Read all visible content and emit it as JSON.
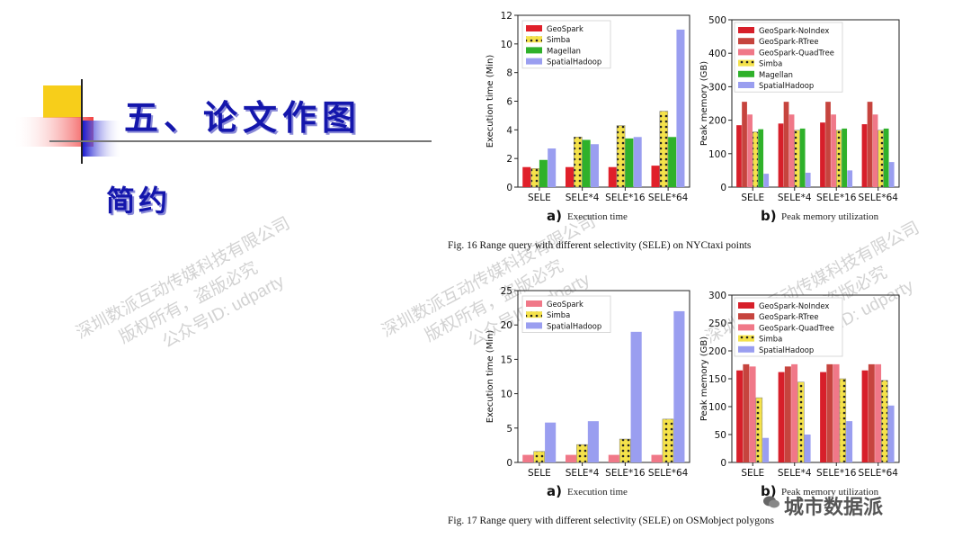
{
  "slide": {
    "title": "五、论文作图",
    "subtitle": "简约",
    "watermark_lines": [
      "深圳数派互动传媒科技有限公司",
      "版权所有，盗版必究",
      "公众号ID: udparty"
    ],
    "logo_text": "城市数据派"
  },
  "figures": [
    {
      "caption": "Fig. 16  Range query with different selectivity (SELE) on NYCtaxi points"
    },
    {
      "caption": "Fig. 17  Range query with different selectivity (SELE) on OSMobject polygons"
    }
  ],
  "colors": {
    "GeoSpark": "#e0202a",
    "Simba": "#f5e24a",
    "Magellan": "#2fb12a",
    "SpatialHadoop": "#9a9ef0",
    "GeoSpark-NoIndex": "#d71f2a",
    "GeoSpark-RTree": "#c6443e",
    "GeoSpark-QuadTree": "#f07888",
    "title_blue": "#1416ac"
  },
  "chart_data": [
    {
      "type": "bar",
      "panel_letter": "a)",
      "panel_label": "Execution time",
      "categories": [
        "SELE",
        "SELE*4",
        "SELE*16",
        "SELE*64"
      ],
      "ylabel": "Execution time (Min)",
      "ylim": [
        0,
        12
      ],
      "yticks": [
        0,
        2,
        4,
        6,
        8,
        10,
        12
      ],
      "legend_position": "top-left",
      "series": [
        {
          "name": "GeoSpark",
          "values": [
            1.4,
            1.4,
            1.4,
            1.5
          ],
          "color": "#e0202a",
          "pattern": "none"
        },
        {
          "name": "Simba",
          "values": [
            1.3,
            3.5,
            4.3,
            5.3
          ],
          "color": "#f5e24a",
          "pattern": "dots"
        },
        {
          "name": "Magellan",
          "values": [
            1.9,
            3.3,
            3.4,
            3.5
          ],
          "color": "#2fb12a",
          "pattern": "none"
        },
        {
          "name": "SpatialHadoop",
          "values": [
            2.7,
            3.0,
            3.5,
            11.0
          ],
          "color": "#9a9ef0",
          "pattern": "none"
        }
      ]
    },
    {
      "type": "bar",
      "panel_letter": "b)",
      "panel_label": "Peak memory utilization",
      "categories": [
        "SELE",
        "SELE*4",
        "SELE*16",
        "SELE*64"
      ],
      "ylabel": "Peak memory (GB)",
      "ylim": [
        0,
        500
      ],
      "yticks": [
        0,
        100,
        200,
        300,
        400,
        500
      ],
      "legend_position": "top-left",
      "series": [
        {
          "name": "GeoSpark-NoIndex",
          "values": [
            185,
            190,
            193,
            188
          ],
          "color": "#d71f2a",
          "pattern": "none"
        },
        {
          "name": "GeoSpark-RTree",
          "values": [
            255,
            255,
            255,
            255
          ],
          "color": "#c6443e",
          "pattern": "none"
        },
        {
          "name": "GeoSpark-QuadTree",
          "values": [
            217,
            217,
            217,
            217
          ],
          "color": "#f07888",
          "pattern": "none"
        },
        {
          "name": "Simba",
          "values": [
            165,
            170,
            170,
            170
          ],
          "color": "#f5e24a",
          "pattern": "dots"
        },
        {
          "name": "Magellan",
          "values": [
            173,
            175,
            175,
            175
          ],
          "color": "#2fb12a",
          "pattern": "none"
        },
        {
          "name": "SpatialHadoop",
          "values": [
            40,
            43,
            50,
            75
          ],
          "color": "#9a9ef0",
          "pattern": "none"
        }
      ]
    },
    {
      "type": "bar",
      "panel_letter": "a)",
      "panel_label": "Execution time",
      "categories": [
        "SELE",
        "SELE*4",
        "SELE*16",
        "SELE*64"
      ],
      "ylabel": "Execution time (Min)",
      "ylim": [
        0,
        25
      ],
      "yticks": [
        0,
        5,
        10,
        15,
        20,
        25
      ],
      "legend_position": "top-left",
      "series": [
        {
          "name": "GeoSpark",
          "values": [
            1.1,
            1.1,
            1.1,
            1.1
          ],
          "color": "#f07888",
          "pattern": "none"
        },
        {
          "name": "Simba",
          "values": [
            1.6,
            2.6,
            3.4,
            6.3
          ],
          "color": "#f5e24a",
          "pattern": "dots"
        },
        {
          "name": "SpatialHadoop",
          "values": [
            5.8,
            6.0,
            19.0,
            22.0
          ],
          "color": "#9a9ef0",
          "pattern": "none"
        }
      ]
    },
    {
      "type": "bar",
      "panel_letter": "b)",
      "panel_label": "Peak memory utilization",
      "categories": [
        "SELE",
        "SELE*4",
        "SELE*16",
        "SELE*64"
      ],
      "ylabel": "Peak memory (GB)",
      "ylim": [
        0,
        300
      ],
      "yticks": [
        0,
        50,
        100,
        150,
        200,
        250,
        300
      ],
      "legend_position": "top-left",
      "series": [
        {
          "name": "GeoSpark-NoIndex",
          "values": [
            165,
            162,
            162,
            165
          ],
          "color": "#d71f2a",
          "pattern": "none"
        },
        {
          "name": "GeoSpark-RTree",
          "values": [
            176,
            172,
            176,
            176
          ],
          "color": "#c6443e",
          "pattern": "none"
        },
        {
          "name": "GeoSpark-QuadTree",
          "values": [
            172,
            176,
            176,
            176
          ],
          "color": "#f07888",
          "pattern": "none"
        },
        {
          "name": "Simba",
          "values": [
            116,
            144,
            150,
            147
          ],
          "color": "#f5e24a",
          "pattern": "dots"
        },
        {
          "name": "SpatialHadoop",
          "values": [
            44,
            50,
            74,
            102
          ],
          "color": "#9a9ef0",
          "pattern": "none"
        }
      ]
    }
  ]
}
